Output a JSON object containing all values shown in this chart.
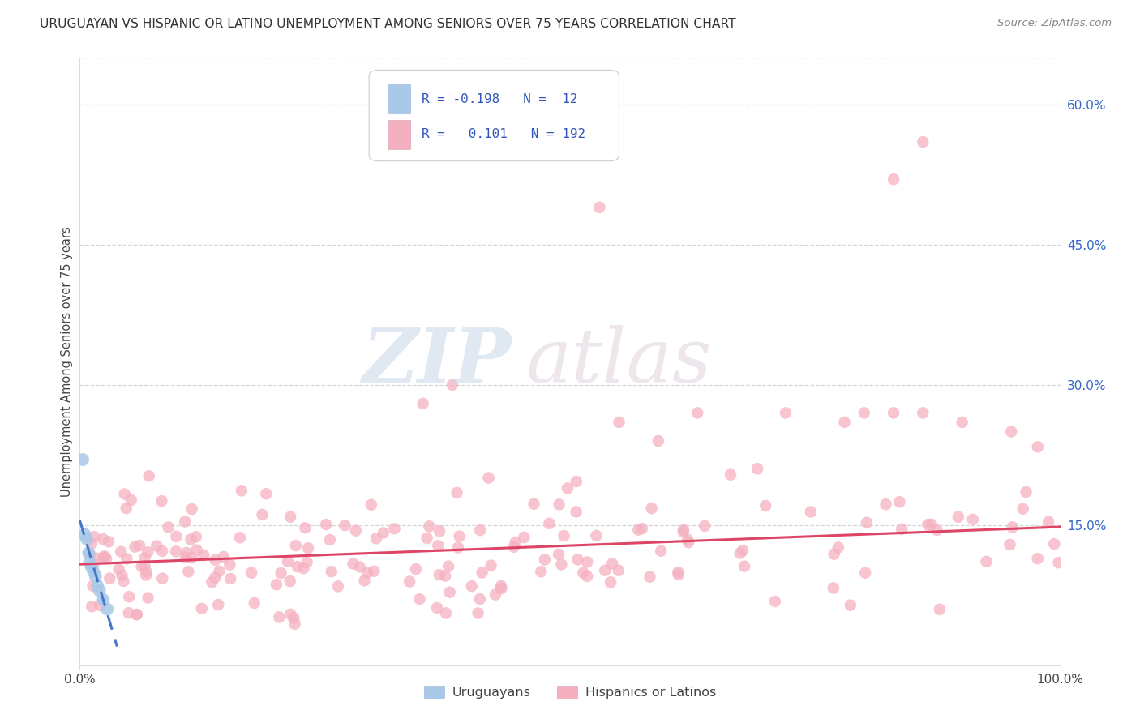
{
  "title": "URUGUAYAN VS HISPANIC OR LATINO UNEMPLOYMENT AMONG SENIORS OVER 75 YEARS CORRELATION CHART",
  "source": "Source: ZipAtlas.com",
  "ylabel": "Unemployment Among Seniors over 75 years",
  "xlim": [
    0.0,
    1.0
  ],
  "ylim": [
    0.0,
    0.65
  ],
  "right_yticks": [
    0.15,
    0.3,
    0.45,
    0.6
  ],
  "right_yticklabels": [
    "15.0%",
    "30.0%",
    "45.0%",
    "60.0%"
  ],
  "xtick_labels": [
    "0.0%",
    "100.0%"
  ],
  "xtick_positions": [
    0.0,
    1.0
  ],
  "grid_color": "#cccccc",
  "background_color": "#ffffff",
  "uruguayan_color": "#a8c8e8",
  "hispanic_color": "#f5b0c0",
  "uruguayan_line_color": "#4477cc",
  "hispanic_line_color": "#dd4466",
  "legend_R1": "-0.198",
  "legend_N1": "12",
  "legend_R2": "0.101",
  "legend_N2": "192",
  "legend_label1": "Uruguayans",
  "legend_label2": "Hispanics or Latinos",
  "hisp_regression_x0": 0.0,
  "hisp_regression_y0": 0.108,
  "hisp_regression_x1": 1.0,
  "hisp_regression_y1": 0.148,
  "uru_regression_x0": 0.0,
  "uru_regression_y0": 0.155,
  "uru_regression_x1": 0.038,
  "uru_regression_y1": 0.02
}
